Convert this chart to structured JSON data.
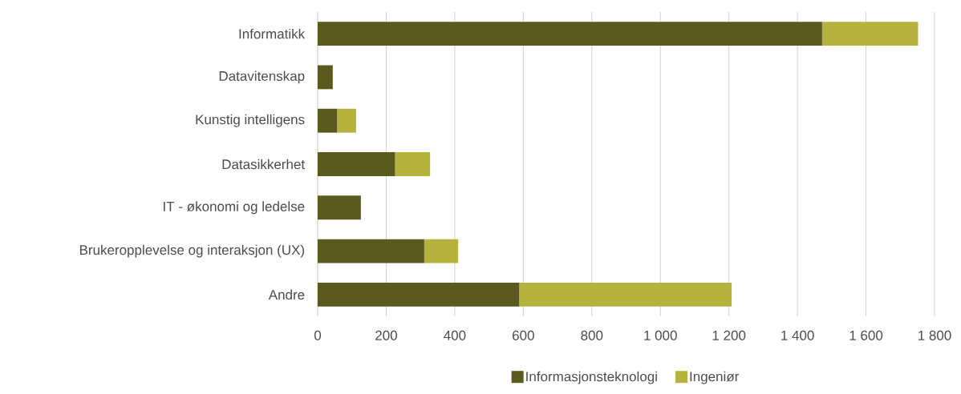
{
  "chart_data": {
    "type": "bar",
    "orientation": "horizontal",
    "stacked": true,
    "categories": [
      "Informatikk",
      "Datavitenskap",
      "Kunstig intelligens",
      "Datasikkerhet",
      "IT - økonomi og ledelse",
      "Brukeropplevelse og interaksjon (UX)",
      "Andre"
    ],
    "series": [
      {
        "name": "Informasjonsteknologi",
        "color": "#5a5a1e",
        "values": [
          1472,
          44,
          57,
          226,
          126,
          311,
          588
        ]
      },
      {
        "name": "Ingeniør",
        "color": "#b5b33e",
        "values": [
          280,
          null,
          55,
          102,
          null,
          99,
          620
        ]
      }
    ],
    "xlim": [
      0,
      1800
    ],
    "xticks": [
      0,
      200,
      400,
      600,
      800,
      {
        "value": 1000,
        "label": "1 000"
      },
      {
        "value": 1200,
        "label": "1 200"
      },
      {
        "value": 1400,
        "label": "1 400"
      },
      {
        "value": 1600,
        "label": "1 600"
      },
      {
        "value": 1800,
        "label": "1 800"
      }
    ],
    "grid": "x",
    "legend": "bottom"
  }
}
